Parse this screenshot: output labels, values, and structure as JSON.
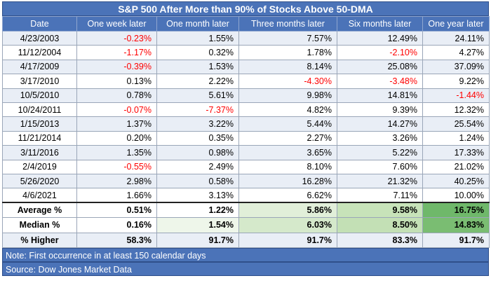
{
  "title": "S&P 500 After More than 90% of Stocks Above 50-DMA",
  "columns": [
    "Date",
    "One week later",
    "One month later",
    "Three months later",
    "Six months later",
    "One year later"
  ],
  "rows": [
    {
      "date": "4/23/2003",
      "values": [
        "-0.23%",
        "1.55%",
        "7.57%",
        "12.49%",
        "24.11%"
      ]
    },
    {
      "date": "11/12/2004",
      "values": [
        "-1.17%",
        "0.32%",
        "1.78%",
        "-2.10%",
        "4.27%"
      ]
    },
    {
      "date": "4/17/2009",
      "values": [
        "-0.39%",
        "1.53%",
        "8.14%",
        "25.08%",
        "37.09%"
      ]
    },
    {
      "date": "3/17/2010",
      "values": [
        "0.13%",
        "2.22%",
        "-4.30%",
        "-3.48%",
        "9.22%"
      ]
    },
    {
      "date": "10/5/2010",
      "values": [
        "0.78%",
        "5.61%",
        "9.98%",
        "14.81%",
        "-1.44%"
      ]
    },
    {
      "date": "10/24/2011",
      "values": [
        "-0.07%",
        "-7.37%",
        "4.82%",
        "9.39%",
        "12.32%"
      ]
    },
    {
      "date": "1/15/2013",
      "values": [
        "1.37%",
        "3.22%",
        "5.44%",
        "14.27%",
        "25.54%"
      ]
    },
    {
      "date": "11/21/2014",
      "values": [
        "0.20%",
        "0.35%",
        "2.27%",
        "3.26%",
        "1.24%"
      ]
    },
    {
      "date": "3/11/2016",
      "values": [
        "1.35%",
        "0.98%",
        "3.65%",
        "5.22%",
        "17.33%"
      ]
    },
    {
      "date": "2/4/2019",
      "values": [
        "-0.55%",
        "2.49%",
        "8.10%",
        "7.60%",
        "21.02%"
      ]
    },
    {
      "date": "5/26/2020",
      "values": [
        "2.98%",
        "0.58%",
        "16.28%",
        "21.32%",
        "40.25%"
      ]
    },
    {
      "date": "4/6/2021",
      "values": [
        "1.66%",
        "3.13%",
        "6.62%",
        "7.11%",
        "10.00%"
      ]
    }
  ],
  "summary": [
    {
      "label": "Average %",
      "values": [
        "0.51%",
        "1.22%",
        "5.86%",
        "9.58%",
        "16.75%"
      ]
    },
    {
      "label": "Median %",
      "values": [
        "0.16%",
        "1.54%",
        "6.03%",
        "8.50%",
        "14.83%"
      ]
    },
    {
      "label": "% Higher",
      "values": [
        "58.3%",
        "91.7%",
        "91.7%",
        "83.3%",
        "91.7%"
      ]
    }
  ],
  "heat_colors": {
    "avg": [
      "#ffffff",
      "#ffffff",
      "#e1efd9",
      "#c7e3b9",
      "#6fb86a"
    ],
    "med": [
      "#ffffff",
      "#eef6ea",
      "#d5e9cb",
      "#c3e0b5",
      "#7abd72"
    ]
  },
  "note": "Note: First occurrence in at least 150 calendar days",
  "source": "Source: Dow Jones Market Data",
  "colors": {
    "header": "#4b73b8",
    "negative": "#ff0000",
    "band": "#e9eef6"
  }
}
